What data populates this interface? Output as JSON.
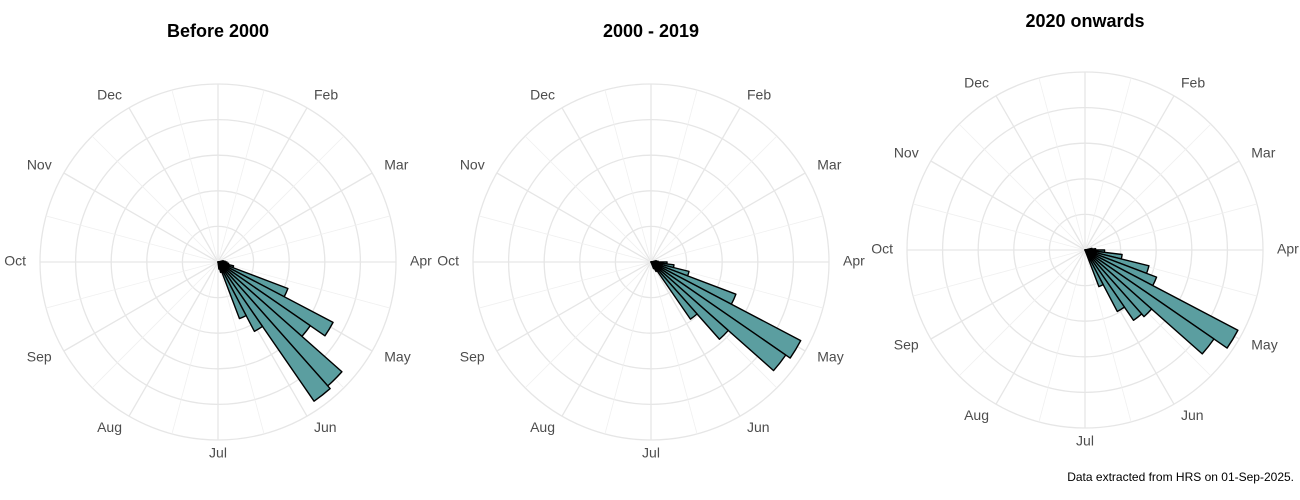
{
  "chart_data": [
    {
      "type": "polar_bar",
      "title": "Before 2000",
      "categories": [
        null,
        "Feb",
        "Mar",
        "Apr",
        "May",
        "Jun",
        "Jul",
        "Aug",
        "Sep",
        "Oct",
        "Nov",
        "Dec"
      ],
      "x": [
        12,
        13,
        14,
        15,
        16,
        17,
        18,
        19,
        20,
        21,
        22,
        23,
        24,
        25
      ],
      "values": [
        3,
        4,
        5,
        6,
        9,
        42,
        73,
        63,
        93,
        95,
        44,
        34,
        6,
        4
      ],
      "color": "#5b9ea0",
      "xlim": [
        0,
        52
      ],
      "ylim": [
        0,
        100
      ],
      "yticks": [
        20,
        40,
        60,
        80,
        100
      ],
      "grid": true
    },
    {
      "type": "polar_bar",
      "title": "2000 - 2019",
      "categories": [
        null,
        "Feb",
        "Mar",
        "Apr",
        "May",
        "Jun",
        "Jul",
        "Aug",
        "Sep",
        "Oct",
        "Nov",
        "Dec"
      ],
      "x": [
        12,
        13,
        14,
        15,
        16,
        17,
        18,
        19,
        20,
        21,
        22,
        23
      ],
      "values": [
        3,
        4,
        9,
        13,
        22,
        51,
        95,
        92,
        58,
        39,
        6,
        4
      ],
      "color": "#5b9ea0",
      "xlim": [
        0,
        52
      ],
      "ylim": [
        0,
        100
      ],
      "yticks": [
        20,
        40,
        60,
        80,
        100
      ],
      "grid": true
    },
    {
      "type": "polar_bar",
      "title": "2020 onwards",
      "categories": [
        null,
        "Feb",
        "Mar",
        "Apr",
        "May",
        "Jun",
        "Jul",
        "Aug",
        "Sep",
        "Oct",
        "Nov",
        "Dec"
      ],
      "x": [
        12,
        13,
        14,
        15,
        16,
        17,
        18,
        19,
        20,
        21,
        22,
        23
      ],
      "values": [
        4,
        6,
        11,
        21,
        37,
        43,
        97,
        88,
        50,
        48,
        39,
        22
      ],
      "color": "#5b9ea0",
      "xlim": [
        0,
        52
      ],
      "ylim": [
        0,
        100
      ],
      "yticks": [
        20,
        40,
        60,
        80,
        100
      ],
      "grid": true
    }
  ],
  "caption": "Data extracted from HRS on 01-Sep-2025."
}
